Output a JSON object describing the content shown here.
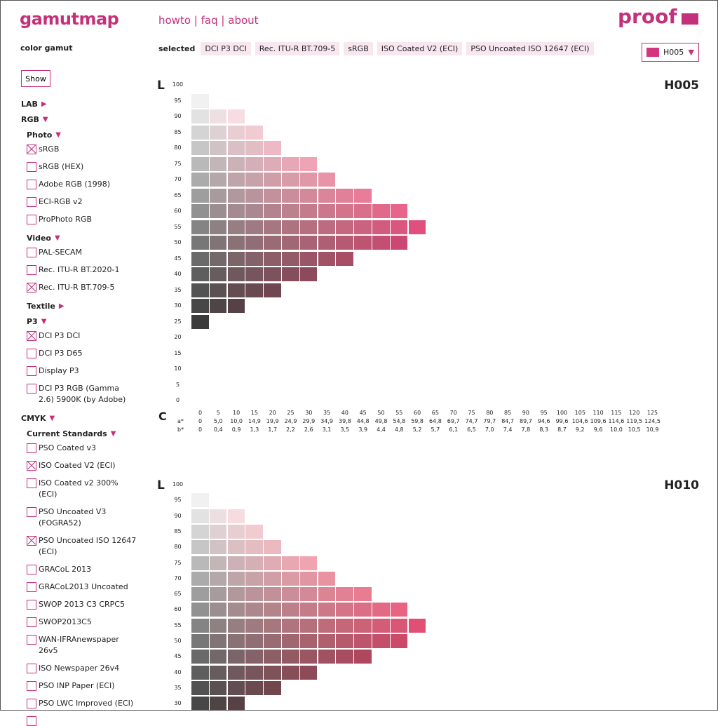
{
  "header": {
    "logo": "gamutmap",
    "nav": [
      "howto",
      "faq",
      "about"
    ],
    "nav_sep": "|",
    "proof": "proof",
    "color_gamut": "color gamut",
    "selected_label": "selected",
    "selected": [
      "DCI P3 DCI",
      "Rec. ITU-R BT.709-5",
      "sRGB",
      "ISO Coated V2 (ECI)",
      "PSO Uncoated ISO 12647 (ECI)"
    ],
    "hue_select": "H005",
    "hue_swatch_color": "#d3367f"
  },
  "sidebar": {
    "show_button": "Show",
    "tree": [
      {
        "t": "h1",
        "label": "LAB",
        "open": false
      },
      {
        "t": "h1",
        "label": "RGB",
        "open": true
      },
      {
        "t": "h2",
        "label": "Photo",
        "open": true
      },
      {
        "t": "cb",
        "label": "sRGB",
        "checked": true
      },
      {
        "t": "cb",
        "label": "sRGB (HEX)",
        "checked": false
      },
      {
        "t": "cb",
        "label": "Adobe RGB (1998)",
        "checked": false
      },
      {
        "t": "cb",
        "label": "ECI-RGB v2",
        "checked": false
      },
      {
        "t": "cb",
        "label": "ProPhoto RGB",
        "checked": false
      },
      {
        "t": "h2",
        "label": "Video",
        "open": true
      },
      {
        "t": "cb",
        "label": "PAL-SECAM",
        "checked": false
      },
      {
        "t": "cb",
        "label": "Rec. ITU-R BT.2020-1",
        "checked": false
      },
      {
        "t": "cb",
        "label": "Rec. ITU-R BT.709-5",
        "checked": true
      },
      {
        "t": "h2",
        "label": "Textile",
        "open": false
      },
      {
        "t": "h2",
        "label": "P3",
        "open": true
      },
      {
        "t": "cb",
        "label": "DCI P3 DCI",
        "checked": true
      },
      {
        "t": "cb",
        "label": "DCI P3 D65",
        "checked": false
      },
      {
        "t": "cb",
        "label": "Display P3",
        "checked": false
      },
      {
        "t": "cb",
        "label": "DCI P3 RGB (Gamma 2.6) 5900K (by Adobe)",
        "checked": false
      },
      {
        "t": "h1",
        "label": "CMYK",
        "open": true
      },
      {
        "t": "h2",
        "label": "Current Standards",
        "open": true
      },
      {
        "t": "cb",
        "label": "PSO Coated v3",
        "checked": false
      },
      {
        "t": "cb",
        "label": "ISO Coated V2 (ECI)",
        "checked": true
      },
      {
        "t": "cb",
        "label": "ISO Coated v2 300% (ECI)",
        "checked": false
      },
      {
        "t": "cb",
        "label": "PSO Uncoated V3 (FOGRA52)",
        "checked": false
      },
      {
        "t": "cb",
        "label": "PSO Uncoated ISO 12647 (ECI)",
        "checked": true
      },
      {
        "t": "cb",
        "label": "GRACoL 2013",
        "checked": false
      },
      {
        "t": "cb",
        "label": "GRACoL2013 Uncoated",
        "checked": false
      },
      {
        "t": "cb",
        "label": "SWOP 2013 C3 CRPC5",
        "checked": false
      },
      {
        "t": "cb",
        "label": "SWOP2013C5",
        "checked": false
      },
      {
        "t": "cb",
        "label": "WAN-IFRAnewspaper 26v5",
        "checked": false
      },
      {
        "t": "cb",
        "label": "ISO Newspaper 26v4",
        "checked": false
      },
      {
        "t": "cb",
        "label": "PSO INP Paper (ECI)",
        "checked": false
      },
      {
        "t": "cb",
        "label": "PSO LWC Improved (ECI)",
        "checked": false
      },
      {
        "t": "cb",
        "label": "",
        "checked": false
      }
    ]
  },
  "chart_data": [
    {
      "type": "heatmap",
      "title": "H005",
      "hue_deg": 5,
      "ylabel": "L",
      "xlabel": "C",
      "a_label": "a*",
      "b_label": "b*",
      "L": [
        "100",
        "95",
        "90",
        "85",
        "80",
        "75",
        "70",
        "65",
        "60",
        "55",
        "50",
        "45",
        "40",
        "35",
        "30",
        "25",
        "20",
        "15",
        "10",
        "5",
        "0"
      ],
      "C": [
        "0",
        "5",
        "10",
        "15",
        "20",
        "25",
        "30",
        "35",
        "40",
        "45",
        "50",
        "55",
        "60",
        "65",
        "70",
        "75",
        "80",
        "85",
        "90",
        "95",
        "100",
        "105",
        "110",
        "115",
        "120",
        "125"
      ],
      "a": [
        "0",
        "5,0",
        "10,0",
        "14,9",
        "19,9",
        "24,9",
        "29,9",
        "34,9",
        "39,8",
        "44,8",
        "49,8",
        "54,8",
        "59,8",
        "64,8",
        "69,7",
        "74,7",
        "79,7",
        "84,7",
        "89,7",
        "94,6",
        "99,6",
        "104,6",
        "109,6",
        "114,6",
        "119,5",
        "124,5"
      ],
      "b": [
        "0",
        "0,4",
        "0,9",
        "1,3",
        "1,7",
        "2,2",
        "2,6",
        "3,1",
        "3,5",
        "3,9",
        "4,4",
        "4,8",
        "5,2",
        "5,7",
        "6,1",
        "6,5",
        "7,0",
        "7,4",
        "7,8",
        "8,3",
        "8,7",
        "9,2",
        "9,6",
        "10,0",
        "10,5",
        "10,9"
      ],
      "cells_per_L": {
        "95": 1,
        "90": 3,
        "85": 4,
        "80": 5,
        "75": 7,
        "70": 8,
        "65": 10,
        "60": 12,
        "55": 13,
        "50": 12,
        "45": 9,
        "40": 7,
        "35": 5,
        "30": 3,
        "25": 1
      }
    },
    {
      "type": "heatmap",
      "title": "H010",
      "hue_deg": 10,
      "ylabel": "L",
      "L": [
        "100",
        "95",
        "90",
        "85",
        "80",
        "75",
        "70",
        "65",
        "60",
        "55",
        "50",
        "45",
        "40",
        "35",
        "30"
      ],
      "cells_per_L": {
        "95": 1,
        "90": 3,
        "85": 4,
        "80": 5,
        "75": 7,
        "70": 8,
        "65": 10,
        "60": 12,
        "55": 13,
        "50": 12,
        "45": 10,
        "40": 7,
        "35": 5,
        "30": 3
      }
    }
  ]
}
